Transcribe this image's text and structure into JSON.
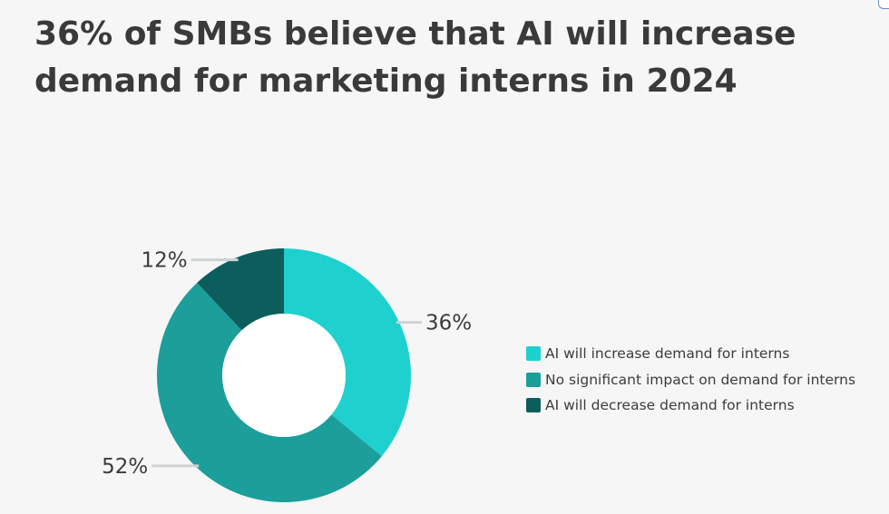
{
  "title": "36% of SMBs believe that AI will increase demand for marketing interns in 2024",
  "colors": {
    "background": "#f6f6f7",
    "leader": "#cfd2d4",
    "hole": "#ffffff"
  },
  "chart_data": {
    "type": "donut",
    "slices": [
      {
        "label": "AI will increase demand for interns",
        "value": 36,
        "display": "36%",
        "color": "#1ed1cf"
      },
      {
        "label": "No significant impact on demand for interns",
        "value": 52,
        "display": "52%",
        "color": "#1c9e9b"
      },
      {
        "label": "AI will decrease demand for interns",
        "value": 12,
        "display": "12%",
        "color": "#0c5e5c"
      }
    ],
    "legend": {
      "placement": "right",
      "entries": [
        "AI will increase demand for interns",
        "No significant impact on demand for interns",
        "AI will decrease demand for interns"
      ]
    }
  }
}
